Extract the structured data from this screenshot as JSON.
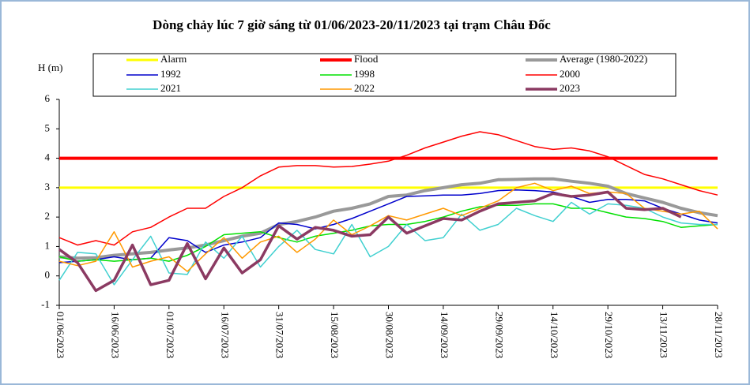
{
  "chart_data": {
    "type": "line",
    "title": "Dòng chảy lúc 7 giờ sáng từ 01/06/2023-20/11/2023 tại trạm Châu Đốc",
    "y_label": "H (m)",
    "ylim": [
      -1,
      6
    ],
    "yticks": [
      -1,
      0,
      1,
      2,
      3,
      4,
      5,
      6
    ],
    "grid": false,
    "categories": [
      "01/06/2023",
      null,
      null,
      "16/06/2023",
      null,
      null,
      "01/07/2023",
      null,
      null,
      "16/07/2023",
      null,
      null,
      "31/07/2023",
      null,
      null,
      "15/08/2023",
      null,
      null,
      "30/08/2023",
      null,
      null,
      "14/09/2023",
      null,
      null,
      "29/09/2023",
      null,
      null,
      "14/10/2023",
      null,
      null,
      "29/10/2023",
      null,
      null,
      "13/11/2023",
      null,
      null,
      "28/11/2023"
    ],
    "series": [
      {
        "name": "Alarm",
        "color": "#ffff00",
        "width": 3,
        "values": [
          3,
          3,
          3,
          3,
          3,
          3,
          3,
          3,
          3,
          3,
          3,
          3,
          3,
          3,
          3,
          3,
          3,
          3,
          3,
          3,
          3,
          3,
          3,
          3,
          3,
          3,
          3,
          3,
          3,
          3,
          3,
          3,
          3,
          3,
          3,
          3,
          3
        ]
      },
      {
        "name": "Flood",
        "color": "#ff0000",
        "width": 4,
        "values": [
          4,
          4,
          4,
          4,
          4,
          4,
          4,
          4,
          4,
          4,
          4,
          4,
          4,
          4,
          4,
          4,
          4,
          4,
          4,
          4,
          4,
          4,
          4,
          4,
          4,
          4,
          4,
          4,
          4,
          4,
          4,
          4,
          4,
          4,
          4,
          4,
          4
        ]
      },
      {
        "name": "Average (1980-2022)",
        "color": "#999999",
        "width": 4,
        "values": [
          0.65,
          0.6,
          0.62,
          0.7,
          0.75,
          0.8,
          0.88,
          0.95,
          1.05,
          1.2,
          1.35,
          1.45,
          1.75,
          1.85,
          2.0,
          2.2,
          2.3,
          2.45,
          2.7,
          2.75,
          2.9,
          3.0,
          3.1,
          3.15,
          3.27,
          3.28,
          3.3,
          3.3,
          3.22,
          3.15,
          3.05,
          2.8,
          2.65,
          2.5,
          2.3,
          2.15,
          2.05
        ]
      },
      {
        "name": "1992",
        "color": "#0000cc",
        "width": 1.5,
        "values": [
          0.45,
          0.5,
          0.55,
          0.65,
          0.55,
          0.6,
          1.3,
          1.2,
          0.8,
          1.05,
          1.15,
          1.3,
          1.8,
          1.75,
          1.6,
          1.75,
          1.95,
          2.2,
          2.45,
          2.7,
          2.72,
          2.75,
          2.75,
          2.8,
          2.9,
          2.92,
          2.9,
          2.85,
          2.7,
          2.5,
          2.6,
          2.6,
          2.55,
          2.3,
          2.1,
          1.9,
          1.8
        ]
      },
      {
        "name": "1998",
        "color": "#00e000",
        "width": 1.5,
        "values": [
          0.65,
          0.5,
          0.55,
          0.5,
          0.55,
          0.6,
          0.5,
          0.7,
          1.0,
          1.4,
          1.45,
          1.5,
          1.3,
          1.15,
          1.35,
          1.45,
          1.55,
          1.7,
          1.75,
          1.75,
          1.85,
          2.0,
          2.2,
          2.35,
          2.4,
          2.4,
          2.45,
          2.45,
          2.3,
          2.3,
          2.15,
          2.0,
          1.95,
          1.85,
          1.65,
          1.7,
          1.75
        ]
      },
      {
        "name": "2000",
        "color": "#ff0000",
        "width": 1.5,
        "values": [
          1.3,
          1.05,
          1.2,
          1.05,
          1.5,
          1.65,
          2.0,
          2.3,
          2.3,
          2.7,
          3.0,
          3.4,
          3.7,
          3.75,
          3.75,
          3.7,
          3.72,
          3.8,
          3.9,
          4.1,
          4.35,
          4.55,
          4.75,
          4.9,
          4.8,
          4.6,
          4.4,
          4.3,
          4.35,
          4.25,
          4.05,
          3.75,
          3.45,
          3.3,
          3.1,
          2.9,
          2.75
        ]
      },
      {
        "name": "2021",
        "color": "#40d0d0",
        "width": 1.5,
        "values": [
          -0.15,
          0.8,
          0.75,
          -0.3,
          0.55,
          1.35,
          0.1,
          0.05,
          1.15,
          0.6,
          1.35,
          0.3,
          1.0,
          1.55,
          0.9,
          0.75,
          1.75,
          0.65,
          1.0,
          1.75,
          1.2,
          1.3,
          2.1,
          1.55,
          1.75,
          2.3,
          2.05,
          1.85,
          2.5,
          2.1,
          2.45,
          2.4,
          2.3,
          2.0,
          1.8,
          1.75,
          1.75
        ]
      },
      {
        "name": "2022",
        "color": "#ff9900",
        "width": 1.5,
        "values": [
          0.5,
          0.35,
          0.5,
          1.5,
          0.3,
          0.5,
          0.65,
          0.15,
          0.75,
          1.3,
          0.6,
          1.15,
          1.35,
          0.8,
          1.25,
          1.9,
          1.4,
          1.7,
          2.05,
          1.9,
          2.1,
          2.3,
          2.05,
          2.3,
          2.55,
          3.0,
          3.15,
          2.9,
          3.05,
          2.8,
          2.85,
          2.8,
          2.3,
          2.2,
          2.1,
          2.2,
          1.6
        ]
      },
      {
        "name": "2023",
        "color": "#8b3a62",
        "width": 3.5,
        "values": [
          0.9,
          0.45,
          -0.5,
          -0.15,
          1.05,
          -0.3,
          -0.15,
          1.1,
          -0.1,
          0.95,
          0.1,
          0.55,
          1.7,
          1.25,
          1.65,
          1.55,
          1.35,
          1.4,
          2.0,
          1.45,
          1.7,
          1.95,
          1.9,
          2.2,
          2.45,
          2.5,
          2.55,
          2.8,
          2.7,
          2.75,
          2.85,
          2.3,
          2.25,
          2.3,
          2.0,
          null,
          null
        ]
      }
    ]
  }
}
